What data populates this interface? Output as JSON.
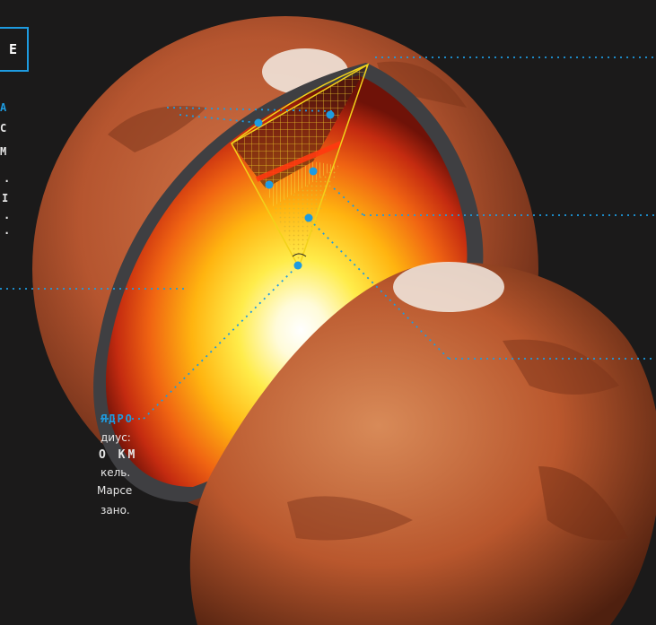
{
  "header_box": {
    "text": "E"
  },
  "left_fragments": [
    "A",
    "C",
    "M",
    ".",
    "I",
    ".",
    "."
  ],
  "core": {
    "title": "ЯДРО",
    "radius_label": "диус:",
    "radius_value": "О КМ",
    "material": "кель.",
    "note_1": "Марсе",
    "note_2": "зано."
  },
  "colors": {
    "accent": "#1e9be0",
    "background": "#1b1a1a",
    "wedge_outline": "#f2d21a"
  },
  "icons": [
    "marker-dot"
  ]
}
